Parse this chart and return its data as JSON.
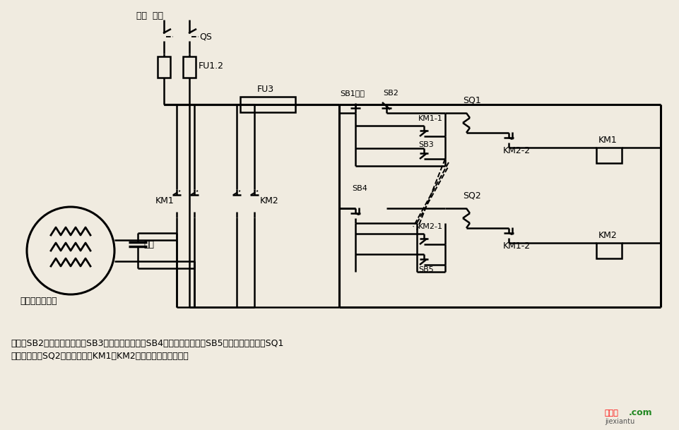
{
  "bg_color": "#f0ebe0",
  "desc1": "说明：SB2为上升启动按钮，SB3为上升点动按钮，SB4为下降启动按钮，SB5为下降点动按钮；SQ1",
  "desc2": "为最高限位，SQ2为最低限位。KM1、KM2可用中间继电器代替。",
  "motor_label": "单相电容电动机",
  "wm1": "接线图",
  "wm2": ".com",
  "wm3": "jiexiantu"
}
